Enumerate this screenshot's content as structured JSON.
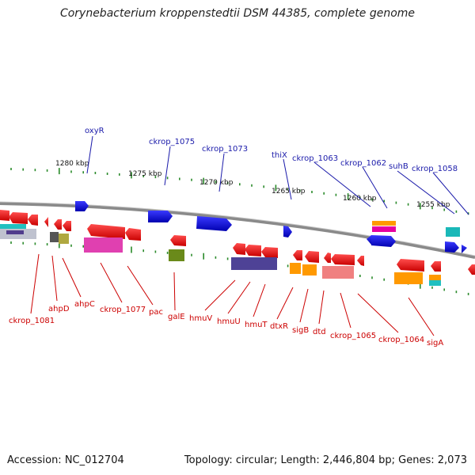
{
  "title": "Corynebacterium kroppenstedtii DSM 44385, complete genome",
  "footer": {
    "accession": "Accession: NC_012704",
    "topology": "Topology: circular; Length: 2,446,804 bp; Genes: 2,073"
  },
  "scale_labels": [
    "1280 kbp",
    "1275 kbp",
    "1270 kbp",
    "1265 kbp",
    "1260 kbp",
    "1255 kbp"
  ],
  "genes_top": [
    "oxyR",
    "ckrop_1075",
    "ckrop_1073",
    "thiX",
    "ckrop_1063",
    "ckrop_1062",
    "suhB",
    "ckrop_1058"
  ],
  "genes_bottom": [
    "ckrop_1081",
    "ahpD",
    "ahpC",
    "ckrop_1077",
    "pac",
    "galE",
    "hmuV",
    "hmuU",
    "hmuT",
    "dtxR",
    "sigB",
    "dtd",
    "ckrop_1065",
    "ckrop_1064",
    "sigA"
  ],
  "colors": {
    "backbone": "#8a8a8a",
    "label_top": "#1a1aaa",
    "label_bottom": "#cc0000",
    "tick": "#2a8a2a"
  }
}
